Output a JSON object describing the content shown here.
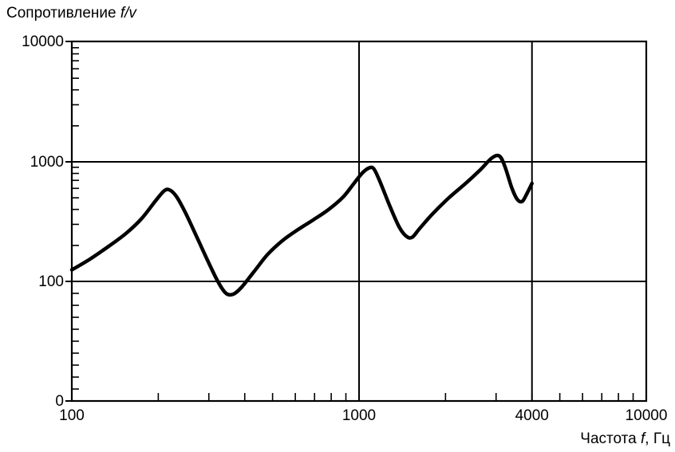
{
  "chart_data": {
    "type": "line",
    "ylabel_prefix": "Сопротивление ",
    "ylabel_var": "f/v",
    "xlabel_prefix": "Частота ",
    "xlabel_var": "f",
    "xlabel_suffix": ", Гц",
    "x_scale": "log",
    "xlim": [
      100,
      10000
    ],
    "x_ticks": [
      {
        "value": 100,
        "label": "100"
      },
      {
        "value": 1000,
        "label": "1000"
      },
      {
        "value": 4000,
        "label": "4000"
      },
      {
        "value": 10000,
        "label": "10000"
      }
    ],
    "y_ticks": [
      {
        "label": "0"
      },
      {
        "label": "100"
      },
      {
        "label": "1000"
      },
      {
        "label": "10000"
      }
    ],
    "y_scale_note": "log for 100..10000, lowest gridline labeled 0",
    "grid": {
      "x": [
        1000,
        4000
      ],
      "y": [
        "100",
        "1000"
      ]
    },
    "series": [
      {
        "color": "#000000",
        "points": [
          [
            100,
            123
          ],
          [
            115,
            150
          ],
          [
            135,
            195
          ],
          [
            155,
            250
          ],
          [
            175,
            330
          ],
          [
            195,
            460
          ],
          [
            210,
            565
          ],
          [
            220,
            570
          ],
          [
            232,
            500
          ],
          [
            250,
            360
          ],
          [
            275,
            220
          ],
          [
            300,
            140
          ],
          [
            325,
            95
          ],
          [
            345,
            78
          ],
          [
            365,
            77
          ],
          [
            390,
            88
          ],
          [
            430,
            118
          ],
          [
            480,
            165
          ],
          [
            540,
            215
          ],
          [
            610,
            265
          ],
          [
            690,
            320
          ],
          [
            780,
            390
          ],
          [
            880,
            500
          ],
          [
            960,
            650
          ],
          [
            1030,
            800
          ],
          [
            1090,
            880
          ],
          [
            1130,
            850
          ],
          [
            1190,
            650
          ],
          [
            1280,
            420
          ],
          [
            1380,
            280
          ],
          [
            1460,
            235
          ],
          [
            1530,
            230
          ],
          [
            1620,
            270
          ],
          [
            1800,
            360
          ],
          [
            2050,
            490
          ],
          [
            2350,
            650
          ],
          [
            2650,
            850
          ],
          [
            2900,
            1060
          ],
          [
            3080,
            1100
          ],
          [
            3220,
            900
          ],
          [
            3400,
            600
          ],
          [
            3550,
            480
          ],
          [
            3700,
            460
          ],
          [
            3850,
            540
          ],
          [
            4000,
            650
          ]
        ]
      }
    ]
  }
}
